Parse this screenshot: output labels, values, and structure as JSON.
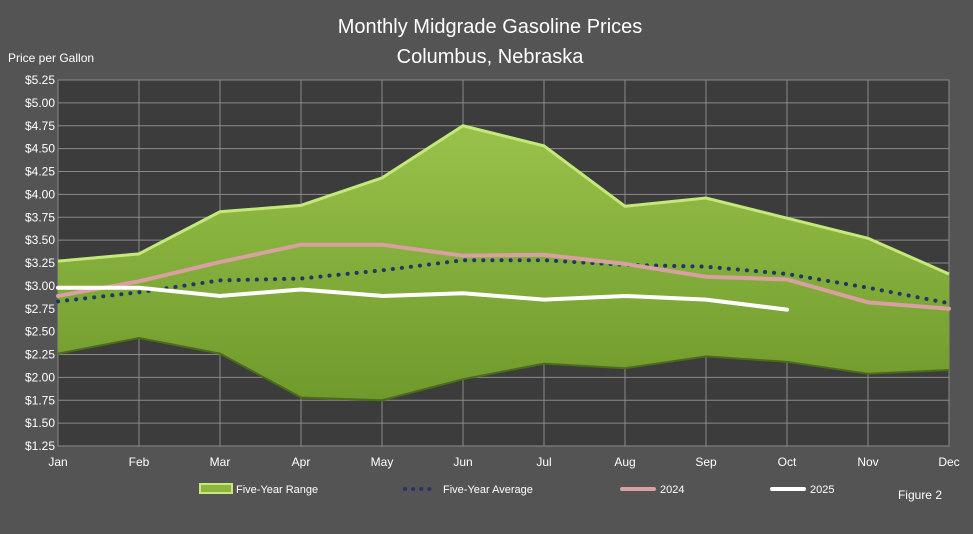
{
  "chart_data": {
    "type": "line",
    "title": "Monthly Midgrade Gasoline Prices",
    "subtitle": "Columbus, Nebraska",
    "ylabel": "Price per Gallon",
    "xlabel": "",
    "figure_label": "Figure 2",
    "categories": [
      "Jan",
      "Feb",
      "Mar",
      "Apr",
      "May",
      "Jun",
      "Jul",
      "Aug",
      "Sep",
      "Oct",
      "Nov",
      "Dec"
    ],
    "ylim": [
      1.25,
      5.25
    ],
    "ytick_step": 0.25,
    "yticks": [
      "$1.25",
      "$1.50",
      "$1.75",
      "$2.00",
      "$2.25",
      "$2.50",
      "$2.75",
      "$3.00",
      "$3.25",
      "$3.50",
      "$3.75",
      "$4.00",
      "$4.25",
      "$4.50",
      "$4.75",
      "$5.00",
      "$5.25"
    ],
    "grid": true,
    "legend_position": "bottom",
    "range": {
      "name": "Five-Year Range",
      "color": "#8db43e",
      "edge_color": "#c4e87a",
      "high": [
        3.27,
        3.35,
        3.81,
        3.88,
        4.18,
        4.75,
        4.53,
        3.87,
        3.96,
        3.74,
        3.52,
        3.13
      ],
      "low": [
        2.26,
        2.43,
        2.26,
        1.78,
        1.75,
        1.98,
        2.15,
        2.1,
        2.23,
        2.17,
        2.04,
        2.08
      ]
    },
    "series": [
      {
        "name": "Five-Year Average",
        "style": "dotted",
        "color": "#1f3864",
        "values": [
          2.83,
          2.93,
          3.06,
          3.08,
          3.17,
          3.28,
          3.28,
          3.23,
          3.21,
          3.13,
          2.98,
          2.81
        ]
      },
      {
        "name": "2024",
        "style": "solid",
        "color": "#d8a0a0",
        "values": [
          2.89,
          3.05,
          3.26,
          3.45,
          3.45,
          3.33,
          3.34,
          3.24,
          3.1,
          3.07,
          2.82,
          2.75
        ]
      },
      {
        "name": "2025",
        "style": "solid",
        "color": "#ffffff",
        "values": [
          2.98,
          2.98,
          2.89,
          2.96,
          2.89,
          2.92,
          2.85,
          2.89,
          2.85,
          2.74,
          null,
          null
        ]
      }
    ]
  }
}
